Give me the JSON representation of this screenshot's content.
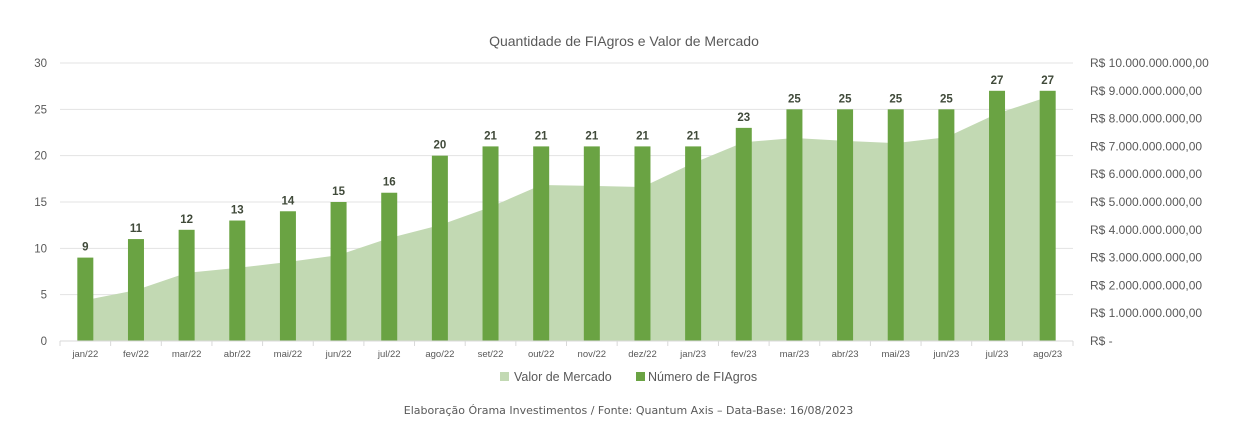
{
  "chart_data": {
    "type": "bar",
    "title": "Quantidade de FIAgros e Valor de Mercado",
    "xlabel": "",
    "ylabel": "",
    "categories": [
      "jan/22",
      "fev/22",
      "mar/22",
      "abr/22",
      "mai/22",
      "jun/22",
      "jul/22",
      "ago/22",
      "set/22",
      "out/22",
      "nov/22",
      "dez/22",
      "jan/23",
      "fev/23",
      "mar/23",
      "abr/23",
      "mai/23",
      "jun/23",
      "jul/23",
      "ago/23"
    ],
    "series": [
      {
        "name": "Valor de Mercado",
        "type": "area",
        "axis": "right",
        "color": "#c2d9b3",
        "values": [
          1470000000,
          1830000000,
          2450000000,
          2630000000,
          2840000000,
          3090000000,
          3700000000,
          4170000000,
          4820000000,
          5610000000,
          5580000000,
          5540000000,
          6400000000,
          7150000000,
          7300000000,
          7200000000,
          7120000000,
          7330000000,
          8180000000,
          8780000000
        ]
      },
      {
        "name": "Número de FIAgros",
        "type": "bar",
        "axis": "left",
        "color": "#6aa343",
        "values": [
          9,
          11,
          12,
          13,
          14,
          15,
          16,
          20,
          21,
          21,
          21,
          21,
          21,
          23,
          25,
          25,
          25,
          25,
          27,
          27
        ]
      }
    ],
    "left_axis": {
      "ylim": [
        0,
        30
      ],
      "ticks": [
        0,
        5,
        10,
        15,
        20,
        25,
        30
      ],
      "tick_labels": [
        "0",
        "5",
        "10",
        "15",
        "20",
        "25",
        "30"
      ]
    },
    "right_axis": {
      "ylim": [
        0,
        10000000000
      ],
      "ticks": [
        0,
        1000000000,
        2000000000,
        3000000000,
        4000000000,
        5000000000,
        6000000000,
        7000000000,
        8000000000,
        9000000000,
        10000000000
      ],
      "tick_labels": [
        "R$ -",
        "R$ 1.000.000.000,00",
        "R$ 2.000.000.000,00",
        "R$ 3.000.000.000,00",
        "R$ 4.000.000.000,00",
        "R$ 5.000.000.000,00",
        "R$ 6.000.000.000,00",
        "R$ 7.000.000.000,00",
        "R$ 8.000.000.000,00",
        "R$ 9.000.000.000,00",
        "R$ 10.000.000.000,00"
      ]
    },
    "grid": true,
    "data_labels": true,
    "legend": {
      "position": "bottom",
      "entries": [
        "Valor de Mercado",
        "Número de FIAgros"
      ]
    }
  },
  "footer": "Elaboração Órama Investimentos / Fonte: Quantum Axis – Data-Base: 16/08/2023",
  "colors": {
    "bar": "#6aa343",
    "area": "#c2d9b3",
    "grid": "#e3e3e3",
    "axis": "#d9d9d9",
    "text": "#595959",
    "label": "#404a3a"
  }
}
